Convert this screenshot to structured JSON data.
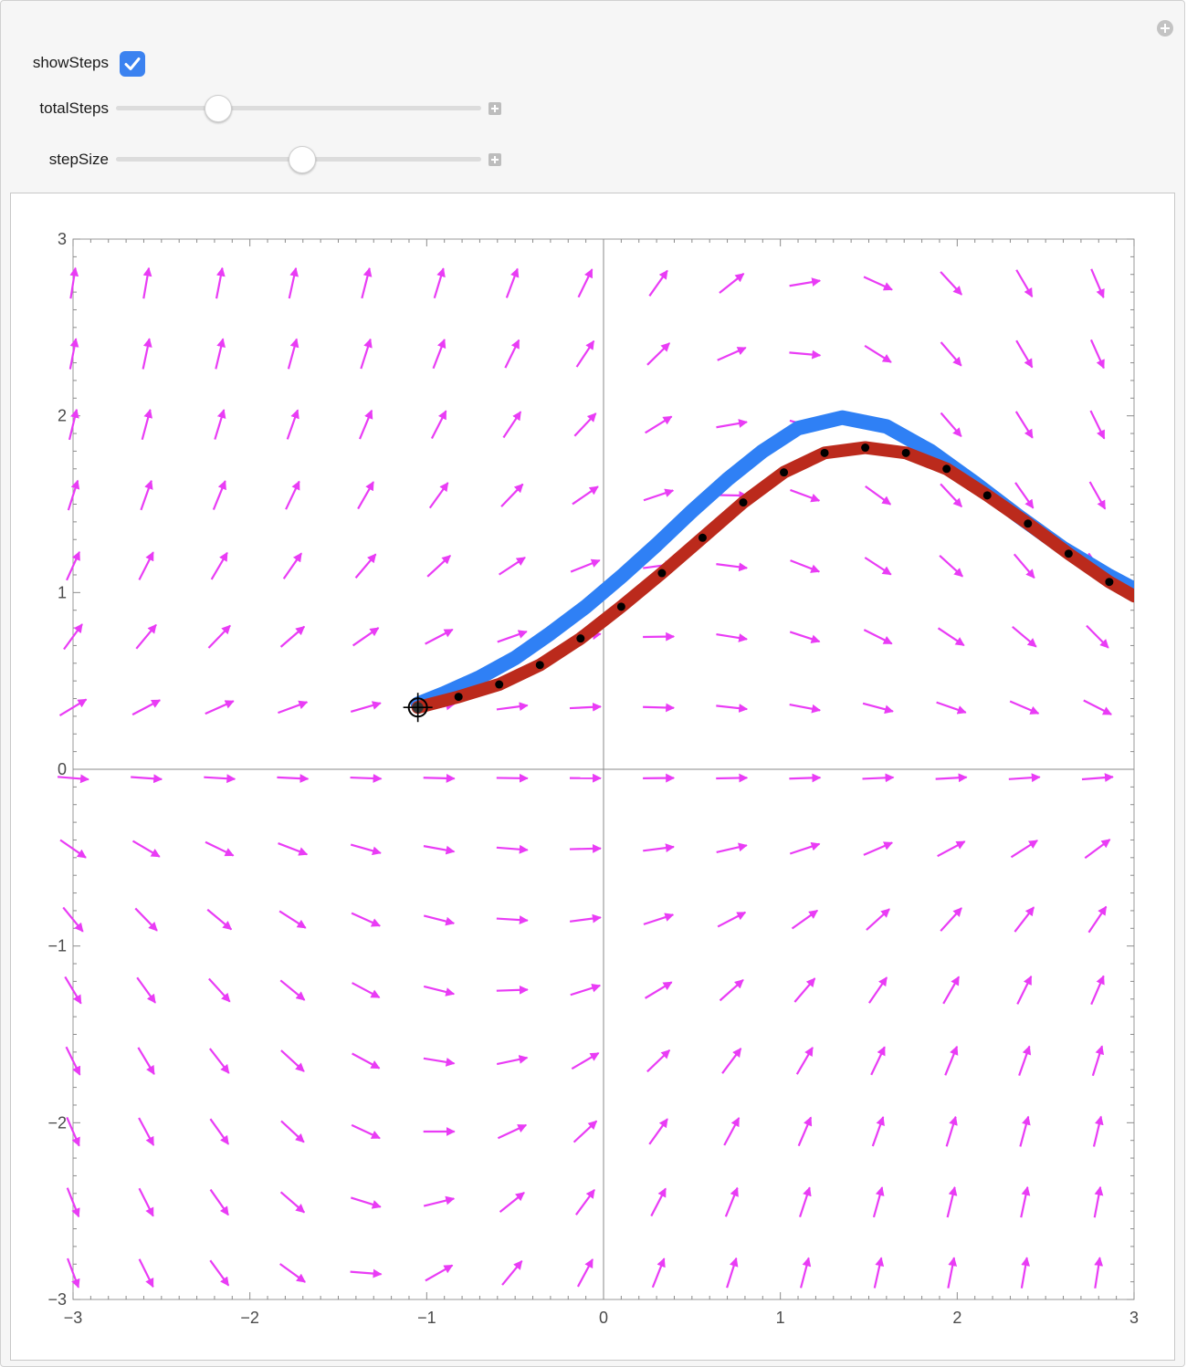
{
  "controls": {
    "show_steps": {
      "label": "showSteps",
      "checked": true
    },
    "total_steps": {
      "label": "totalSteps",
      "value": 0.28
    },
    "step_size": {
      "label": "stepSize",
      "value": 0.51
    }
  },
  "chart_data": {
    "type": "vector-field",
    "title": "",
    "xlabel": "",
    "ylabel": "",
    "xlim": [
      -3,
      3
    ],
    "ylim": [
      -3,
      3
    ],
    "x_ticks": [
      -3,
      -2,
      -1,
      0,
      1,
      2,
      3
    ],
    "y_ticks": [
      -3,
      -2,
      -1,
      0,
      1,
      2,
      3
    ],
    "x_tick_labels": [
      "−3",
      "−2",
      "−1",
      "0",
      "1",
      "2",
      "3"
    ],
    "y_tick_labels": [
      "−3",
      "−2",
      "−1",
      "0",
      "1",
      "2",
      "3"
    ],
    "grid": false,
    "field_color": "#e93cf5",
    "exact_color": "#2f80f5",
    "approx_color": "#bb2a1c",
    "start_point": {
      "x": -1.05,
      "y": 0.35
    },
    "exact_curve": {
      "x": [
        -1.05,
        -0.9,
        -0.7,
        -0.5,
        -0.3,
        -0.1,
        0.1,
        0.3,
        0.5,
        0.7,
        0.9,
        1.1,
        1.35,
        1.6,
        1.85,
        2.1,
        2.35,
        2.6,
        2.85,
        3.0
      ],
      "y": [
        0.37,
        0.43,
        0.52,
        0.63,
        0.77,
        0.92,
        1.09,
        1.27,
        1.46,
        1.64,
        1.8,
        1.93,
        1.99,
        1.94,
        1.8,
        1.62,
        1.43,
        1.25,
        1.1,
        1.02
      ]
    },
    "approx_steps": {
      "x": [
        -1.05,
        -0.82,
        -0.59,
        -0.36,
        -0.13,
        0.1,
        0.33,
        0.56,
        0.79,
        1.02,
        1.25,
        1.48,
        1.71,
        1.94,
        2.17,
        2.4,
        2.63,
        2.86,
        3.0
      ],
      "y": [
        0.35,
        0.41,
        0.48,
        0.59,
        0.74,
        0.92,
        1.11,
        1.31,
        1.51,
        1.68,
        1.79,
        1.82,
        1.79,
        1.7,
        1.55,
        1.39,
        1.22,
        1.06,
        0.98
      ]
    }
  }
}
